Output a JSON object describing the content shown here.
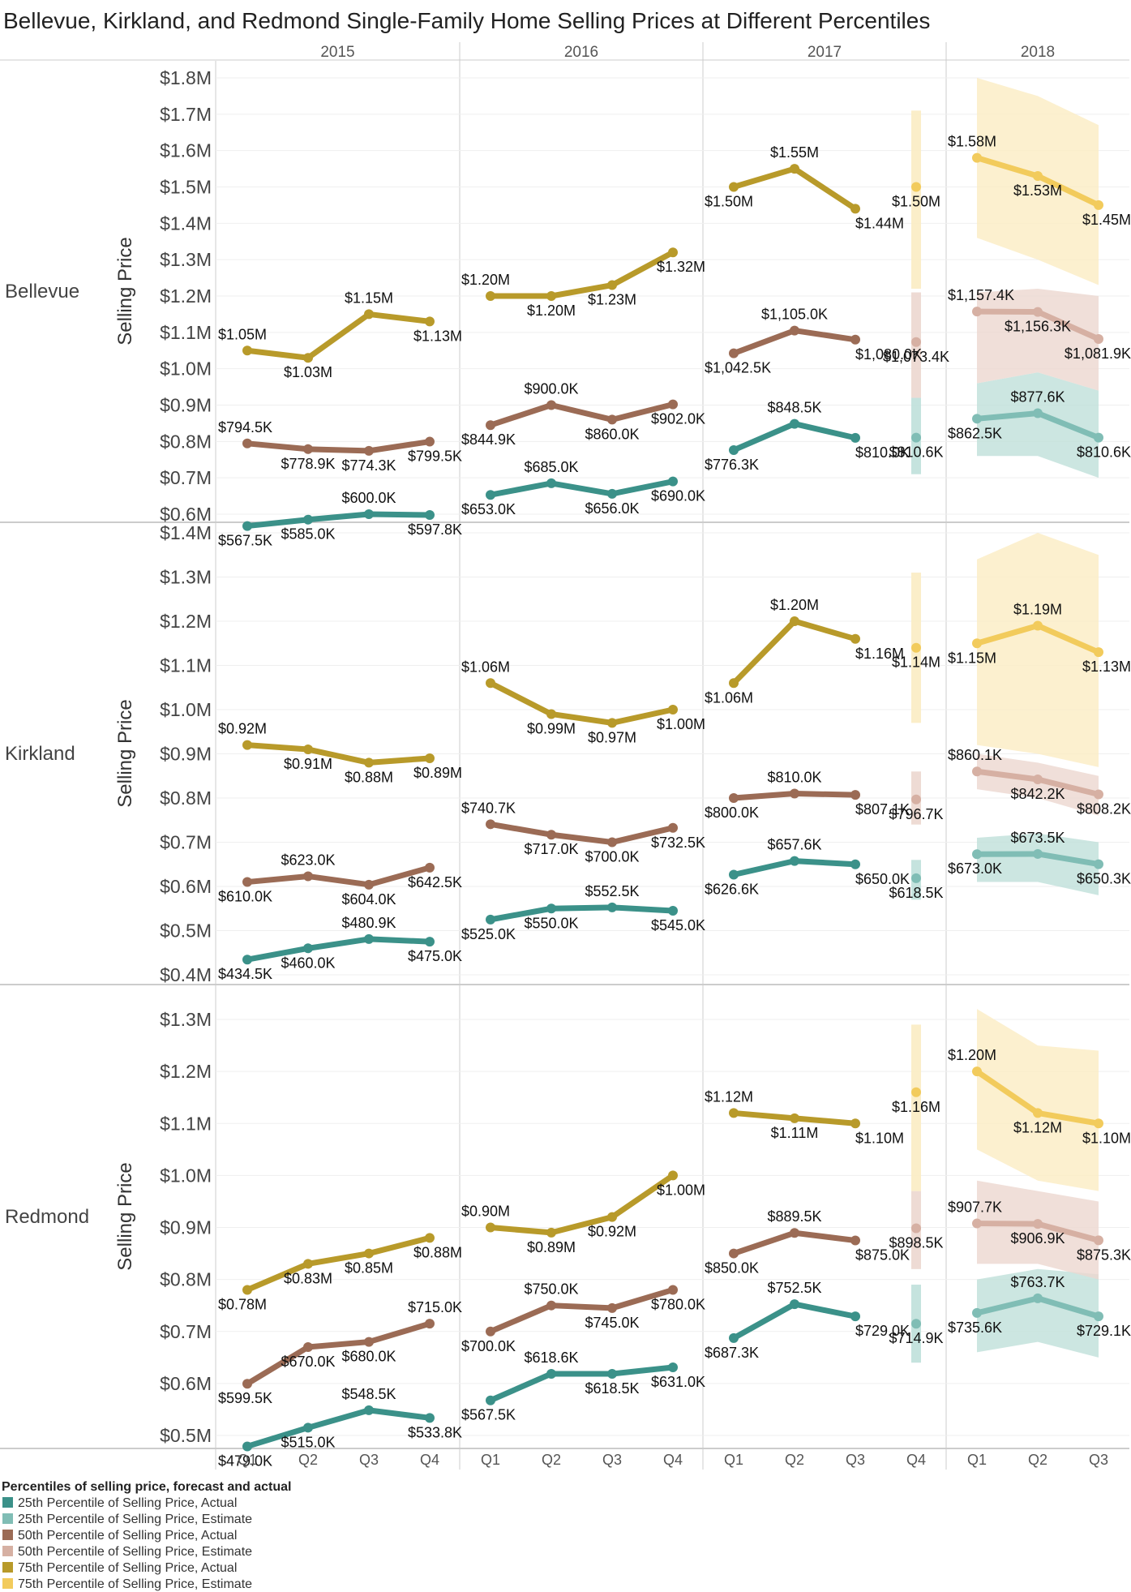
{
  "colors": {
    "p25_actual": "#3b9189",
    "p25_estimate": "#80bdb5",
    "p50_actual": "#9b6b55",
    "p50_estimate": "#d6b0a3",
    "p75_actual": "#b89a2a",
    "p75_estimate": "#f2cb5c",
    "band_p25": "#bfe0da",
    "band_p50": "#ecd7cf",
    "band_p75": "#fbecc3"
  },
  "chart_data": {
    "type": "line",
    "title": "Bellevue, Kirkland, and Redmond Single-Family Home Selling Prices at Different Percentiles",
    "ylabel": "Selling Price",
    "years": [
      "2015",
      "2016",
      "2017",
      "2018"
    ],
    "quarters": [
      "Q1",
      "Q2",
      "Q3",
      "Q4"
    ],
    "legend": {
      "title": "Percentiles of selling price, forecast and actual",
      "items": [
        {
          "label": "25th Percentile of Selling Price, Actual",
          "color": "#3b9189"
        },
        {
          "label": "25th Percentile of Selling Price, Estimate",
          "color": "#80bdb5"
        },
        {
          "label": "50th Percentile of Selling Price, Actual",
          "color": "#9b6b55"
        },
        {
          "label": "50th Percentile of Selling Price, Estimate",
          "color": "#d6b0a3"
        },
        {
          "label": "75th Percentile of Selling Price, Actual",
          "color": "#b89a2a"
        },
        {
          "label": "75th Percentile of Selling Price, Estimate",
          "color": "#f2cb5c"
        }
      ]
    },
    "panels": [
      {
        "city": "Bellevue",
        "ylim": [
          0.55,
          1.85
        ],
        "ticks": [
          {
            "v": 0.6,
            "label": "$0.6M"
          },
          {
            "v": 0.7,
            "label": "$0.7M"
          },
          {
            "v": 0.8,
            "label": "$0.8M"
          },
          {
            "v": 0.9,
            "label": "$0.9M"
          },
          {
            "v": 1.0,
            "label": "$1.0M"
          },
          {
            "v": 1.1,
            "label": "$1.1M"
          },
          {
            "v": 1.2,
            "label": "$1.2M"
          },
          {
            "v": 1.3,
            "label": "$1.3M"
          },
          {
            "v": 1.4,
            "label": "$1.4M"
          },
          {
            "v": 1.5,
            "label": "$1.5M"
          },
          {
            "v": 1.6,
            "label": "$1.6M"
          },
          {
            "v": 1.7,
            "label": "$1.7M"
          },
          {
            "v": 1.8,
            "label": "$1.8M"
          }
        ],
        "series": [
          {
            "name": "25th Percentile of Selling Price",
            "key": "p25",
            "values": [
              0.5675,
              0.585,
              0.6,
              0.5978,
              0.653,
              0.685,
              0.656,
              0.69,
              0.7763,
              0.8485,
              0.81,
              0.8106,
              0.8625,
              0.8776,
              0.8106
            ],
            "labels": [
              "$567.5K",
              "$585.0K",
              "$600.0K",
              "$597.8K",
              "$653.0K",
              "$685.0K",
              "$656.0K",
              "$690.0K",
              "$776.3K",
              "$848.5K",
              "$810.0K",
              "$810.6K",
              "$862.5K",
              "$877.6K",
              "$810.6K"
            ],
            "band_q4": [
              0.71,
              0.92
            ],
            "band_2018": {
              "low": [
                0.76,
                0.76,
                0.7
              ],
              "high": [
                0.96,
                0.99,
                0.94
              ]
            }
          },
          {
            "name": "50th Percentile of Selling Price",
            "key": "p50",
            "values": [
              0.7945,
              0.7789,
              0.7743,
              0.7995,
              0.8449,
              0.9,
              0.86,
              0.902,
              1.0425,
              1.105,
              1.08,
              1.0734,
              1.1574,
              1.1563,
              1.0819
            ],
            "labels": [
              "$794.5K",
              "$778.9K",
              "$774.3K",
              "$799.5K",
              "$844.9K",
              "$900.0K",
              "$860.0K",
              "$902.0K",
              "$1,042.5K",
              "$1,105.0K",
              "$1,080.0K",
              "$1,073.4K",
              "$1,157.4K",
              "$1,156.3K",
              "$1,081.9K"
            ],
            "band_q4": [
              0.92,
              1.21
            ],
            "band_2018": {
              "low": [
                0.96,
                0.99,
                0.94
              ],
              "high": [
                1.21,
                1.22,
                1.2
              ]
            }
          },
          {
            "name": "75th Percentile of Selling Price",
            "key": "p75",
            "values": [
              1.05,
              1.03,
              1.15,
              1.13,
              1.2,
              1.2,
              1.23,
              1.32,
              1.5,
              1.55,
              1.44,
              1.5,
              1.58,
              1.53,
              1.45
            ],
            "labels": [
              "$1.05M",
              "$1.03M",
              "$1.15M",
              "$1.13M",
              "$1.20M",
              "$1.20M",
              "$1.23M",
              "$1.32M",
              "$1.50M",
              "$1.55M",
              "$1.44M",
              "$1.50M",
              "$1.58M",
              "$1.53M",
              "$1.45M"
            ],
            "band_q4": [
              1.22,
              1.71
            ],
            "band_2018": {
              "low": [
                1.36,
                1.3,
                1.23
              ],
              "high": [
                1.8,
                1.75,
                1.67
              ]
            }
          }
        ]
      },
      {
        "city": "Kirkland",
        "ylim": [
          0.39,
          1.42
        ],
        "ticks": [
          {
            "v": 0.4,
            "label": "$0.4M"
          },
          {
            "v": 0.5,
            "label": "$0.5M"
          },
          {
            "v": 0.6,
            "label": "$0.6M"
          },
          {
            "v": 0.7,
            "label": "$0.7M"
          },
          {
            "v": 0.8,
            "label": "$0.8M"
          },
          {
            "v": 0.9,
            "label": "$0.9M"
          },
          {
            "v": 1.0,
            "label": "$1.0M"
          },
          {
            "v": 1.1,
            "label": "$1.1M"
          },
          {
            "v": 1.2,
            "label": "$1.2M"
          },
          {
            "v": 1.3,
            "label": "$1.3M"
          },
          {
            "v": 1.4,
            "label": "$1.4M"
          }
        ],
        "series": [
          {
            "name": "25th Percentile of Selling Price",
            "key": "p25",
            "values": [
              0.4345,
              0.46,
              0.4809,
              0.475,
              0.525,
              0.55,
              0.5525,
              0.545,
              0.6266,
              0.6576,
              0.65,
              0.6185,
              0.673,
              0.6735,
              0.6503
            ],
            "labels": [
              "$434.5K",
              "$460.0K",
              "$480.9K",
              "$475.0K",
              "$525.0K",
              "$550.0K",
              "$552.5K",
              "$545.0K",
              "$626.6K",
              "$657.6K",
              "$650.0K",
              "$618.5K",
              "$673.0K",
              "$673.5K",
              "$650.3K"
            ],
            "band_q4": [
              0.57,
              0.66
            ],
            "band_2018": {
              "low": [
                0.61,
                0.61,
                0.58
              ],
              "high": [
                0.71,
                0.72,
                0.7
              ]
            }
          },
          {
            "name": "50th Percentile of Selling Price",
            "key": "p50",
            "values": [
              0.61,
              0.623,
              0.604,
              0.6425,
              0.7407,
              0.717,
              0.7,
              0.7325,
              0.8,
              0.81,
              0.8071,
              0.7967,
              0.8601,
              0.8422,
              0.8082
            ],
            "labels": [
              "$610.0K",
              "$623.0K",
              "$604.0K",
              "$642.5K",
              "$740.7K",
              "$717.0K",
              "$700.0K",
              "$732.5K",
              "$800.0K",
              "$810.0K",
              "$807.1K",
              "$796.7K",
              "$860.1K",
              "$842.2K",
              "$808.2K"
            ],
            "band_q4": [
              0.74,
              0.86
            ],
            "band_2018": {
              "low": [
                0.82,
                0.8,
                0.76
              ],
              "high": [
                0.9,
                0.88,
                0.85
              ]
            }
          },
          {
            "name": "75th Percentile of Selling Price",
            "key": "p75",
            "values": [
              0.92,
              0.91,
              0.88,
              0.89,
              1.06,
              0.99,
              0.97,
              1.0,
              1.06,
              1.2,
              1.16,
              1.14,
              1.15,
              1.19,
              1.13
            ],
            "labels": [
              "$0.92M",
              "$0.91M",
              "$0.88M",
              "$0.89M",
              "$1.06M",
              "$0.99M",
              "$0.97M",
              "$1.00M",
              "$1.06M",
              "$1.20M",
              "$1.16M",
              "$1.14M",
              "$1.15M",
              "$1.19M",
              "$1.13M"
            ],
            "band_q4": [
              0.97,
              1.31
            ],
            "band_2018": {
              "low": [
                0.92,
                0.9,
                0.87
              ],
              "high": [
                1.34,
                1.4,
                1.35
              ]
            }
          }
        ]
      },
      {
        "city": "Redmond",
        "ylim": [
          0.46,
          1.33
        ],
        "ticks": [
          {
            "v": 0.5,
            "label": "$0.5M"
          },
          {
            "v": 0.6,
            "label": "$0.6M"
          },
          {
            "v": 0.7,
            "label": "$0.7M"
          },
          {
            "v": 0.8,
            "label": "$0.8M"
          },
          {
            "v": 0.9,
            "label": "$0.9M"
          },
          {
            "v": 1.0,
            "label": "$1.0M"
          },
          {
            "v": 1.1,
            "label": "$1.1M"
          },
          {
            "v": 1.2,
            "label": "$1.2M"
          },
          {
            "v": 1.3,
            "label": "$1.3M"
          }
        ],
        "series": [
          {
            "name": "25th Percentile of Selling Price",
            "key": "p25",
            "values": [
              0.479,
              0.515,
              0.5485,
              0.5338,
              0.5675,
              0.6186,
              0.6185,
              0.631,
              0.6873,
              0.7525,
              0.729,
              0.7149,
              0.7356,
              0.7637,
              0.7291
            ],
            "labels": [
              "$479.0K",
              "$515.0K",
              "$548.5K",
              "$533.8K",
              "$567.5K",
              "$618.6K",
              "$618.5K",
              "$631.0K",
              "$687.3K",
              "$752.5K",
              "$729.0K",
              "$714.9K",
              "$735.6K",
              "$763.7K",
              "$729.1K"
            ],
            "band_q4": [
              0.64,
              0.79
            ],
            "band_2018": {
              "low": [
                0.66,
                0.68,
                0.65
              ],
              "high": [
                0.8,
                0.82,
                0.81
              ]
            }
          },
          {
            "name": "50th Percentile of Selling Price",
            "key": "p50",
            "values": [
              0.5995,
              0.67,
              0.68,
              0.715,
              0.7,
              0.75,
              0.745,
              0.78,
              0.85,
              0.8895,
              0.875,
              0.8985,
              0.9077,
              0.9069,
              0.8753
            ],
            "labels": [
              "$599.5K",
              "$670.0K",
              "$680.0K",
              "$715.0K",
              "$700.0K",
              "$750.0K",
              "$745.0K",
              "$780.0K",
              "$850.0K",
              "$889.5K",
              "$875.0K",
              "$898.5K",
              "$907.7K",
              "$906.9K",
              "$875.3K"
            ],
            "band_q4": [
              0.82,
              0.97
            ],
            "band_2018": {
              "low": [
                0.83,
                0.83,
                0.8
              ],
              "high": [
                0.99,
                0.97,
                0.95
              ]
            }
          },
          {
            "name": "75th Percentile of Selling Price",
            "key": "p75",
            "values": [
              0.78,
              0.83,
              0.85,
              0.88,
              0.9,
              0.89,
              0.92,
              1.0,
              1.12,
              1.11,
              1.1,
              1.16,
              1.2,
              1.12,
              1.1
            ],
            "labels": [
              "$0.78M",
              "$0.83M",
              "$0.85M",
              "$0.88M",
              "$0.90M",
              "$0.89M",
              "$0.92M",
              "$1.00M",
              "$1.12M",
              "$1.11M",
              "$1.10M",
              "$1.16M",
              "$1.20M",
              "$1.12M",
              "$1.10M"
            ],
            "band_q4": [
              0.97,
              1.29
            ],
            "band_2018": {
              "low": [
                1.05,
                0.99,
                0.97
              ],
              "high": [
                1.32,
                1.25,
                1.24
              ]
            }
          }
        ]
      }
    ]
  }
}
